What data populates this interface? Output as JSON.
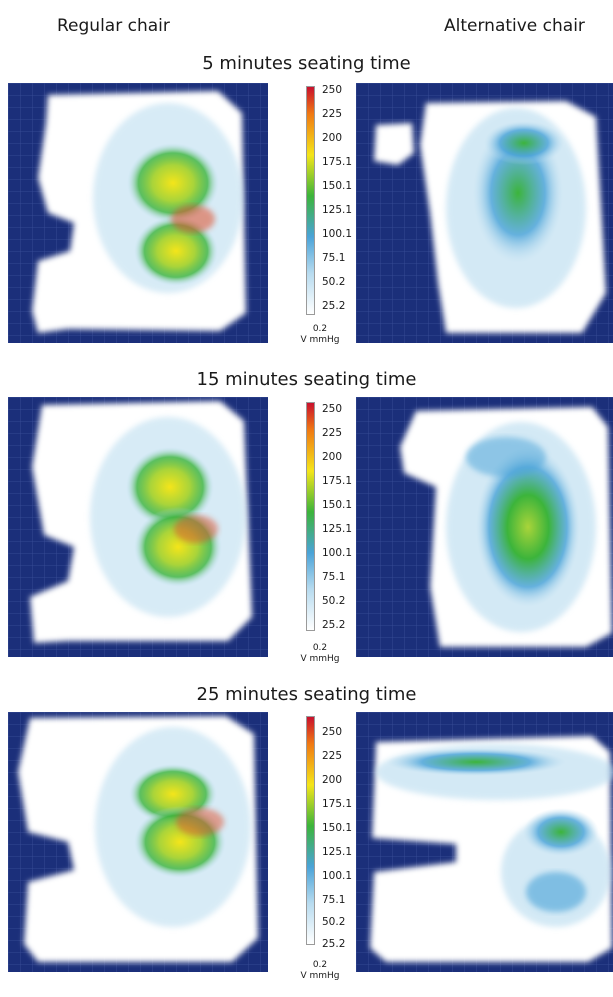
{
  "columns": {
    "left": "Regular chair",
    "right": "Alternative chair"
  },
  "sections": [
    {
      "title": "5 minutes seating time"
    },
    {
      "title": "15 minutes seating time"
    },
    {
      "title": "25 minutes seating time"
    }
  ],
  "scale": {
    "ticks": [
      "250",
      "225",
      "200",
      "175.1",
      "150.1",
      "125.1",
      "100.1",
      "75.1",
      "50.2",
      "25.2",
      "0.2"
    ],
    "unit": "V mmHg"
  },
  "colors": {
    "background": "#1b2f7a",
    "grid": "#3a4f9a",
    "cushion": "#ffffff",
    "low": "#b7dbef",
    "mid": "#3cb43b",
    "high": "#f4e51a",
    "peak": "#e0502a"
  }
}
